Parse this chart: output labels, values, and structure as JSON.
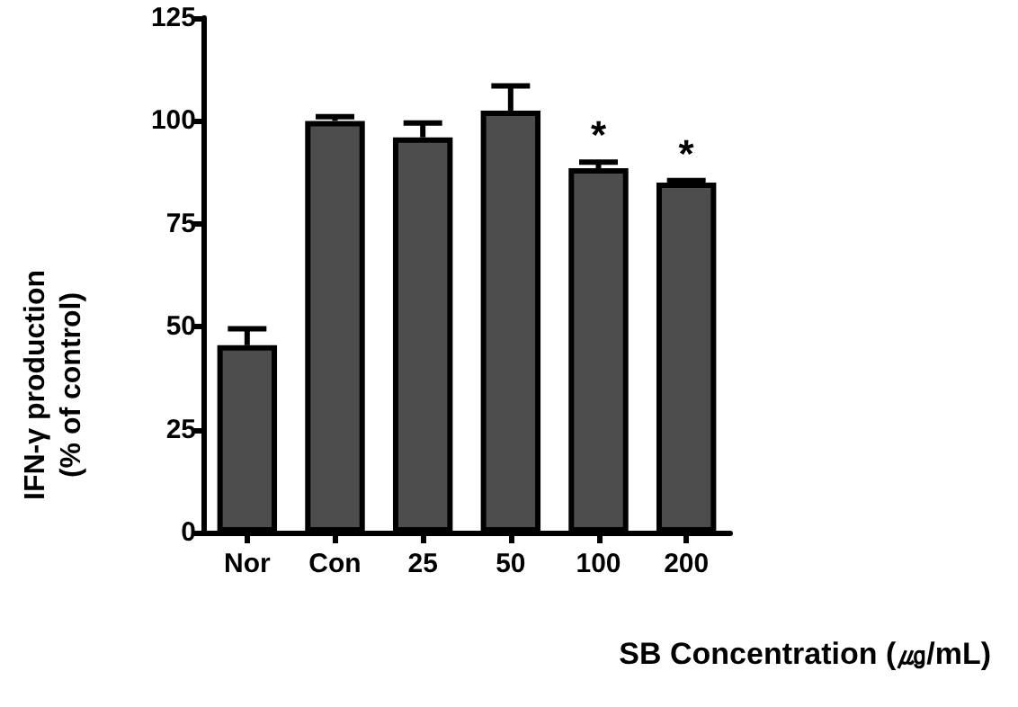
{
  "chart_data": {
    "type": "bar",
    "ylabel": "IFN-γ production\n(% of control)",
    "xlabel": "SB Concentration (㎍/mL)",
    "categories": [
      "Nor",
      "Con",
      "25",
      "50",
      "100",
      "200"
    ],
    "values": [
      45.5,
      100,
      96,
      102.5,
      88.5,
      85
    ],
    "errors": [
      [
        45.5,
        49.5
      ],
      [
        100,
        101
      ],
      [
        96,
        99.5
      ],
      [
        102.5,
        108.5
      ],
      [
        88.5,
        90
      ],
      [
        85,
        85.5
      ]
    ],
    "color": "#4d4d4d",
    "ylim": [
      0,
      125
    ],
    "yticks": [
      0,
      25,
      50,
      75,
      100,
      125
    ],
    "grid": false,
    "annotations": [
      {
        "text": "*",
        "x": "100",
        "y": 90
      },
      {
        "text": "*",
        "x": "200",
        "y": 85.5
      }
    ]
  }
}
